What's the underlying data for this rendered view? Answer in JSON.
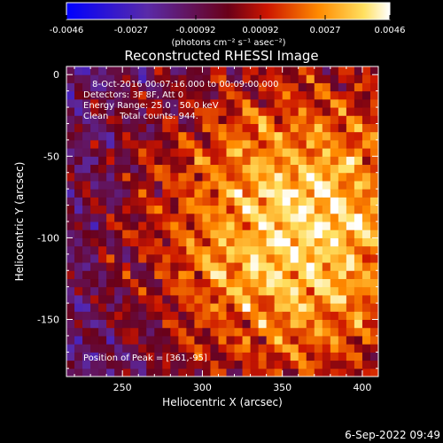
{
  "chart_data": {
    "type": "heatmap",
    "title": "Reconstructed RHESSI Image",
    "xlabel": "Heliocentric X (arcsec)",
    "ylabel": "Heliocentric Y (arcsec)",
    "xlim": [
      215,
      410
    ],
    "ylim": [
      -185,
      5
    ],
    "x_ticks": [
      250,
      300,
      350,
      400
    ],
    "y_ticks": [
      0,
      -50,
      -100,
      -150
    ],
    "colorbar": {
      "ticks": [
        "-0.0046",
        "-0.0027",
        "-0.00092",
        "0.00092",
        "0.0027",
        "0.0046"
      ],
      "range": [
        -0.0046,
        0.0046
      ],
      "units_label": "(photons cm⁻² s⁻¹ asec⁻²)",
      "colormap": "blue-purple-red-yellow-white"
    },
    "annotations": {
      "line1": "8-Oct-2016 00:07:16.000 to 00:09:00.000",
      "line2": "Detectors: 3F 8F, Att 0",
      "line3": "Energy Range: 25.0 - 50.0 keV",
      "line4": "Clean    Total counts: 944.",
      "peak": "Position of Peak = [361,-95]"
    },
    "peak_position": [
      361,
      -95
    ]
  },
  "footer": {
    "timestamp": "6-Sep-2022 09:49"
  }
}
